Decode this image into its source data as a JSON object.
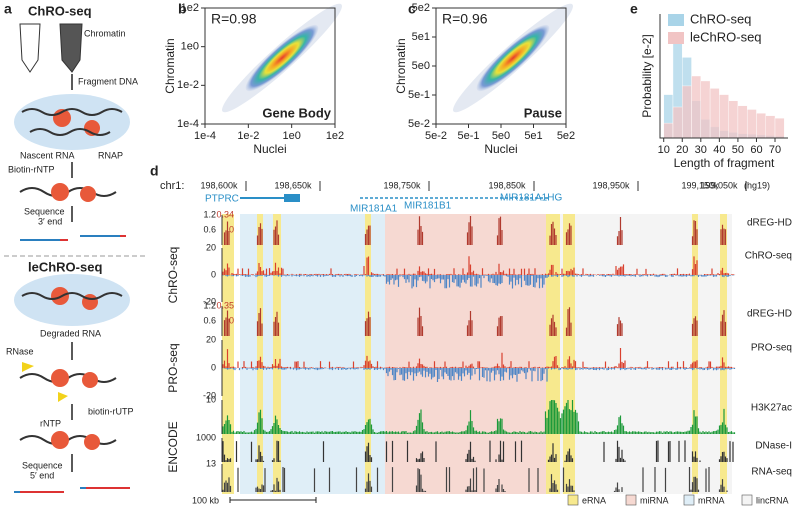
{
  "figure": {
    "panel_letters": [
      "a",
      "b",
      "c",
      "d",
      "e"
    ],
    "schematic": {
      "title_top": "ChRO-seq",
      "chromatin": "Chromatin",
      "fragment": "Fragment DNA",
      "nascent": "Nascent RNA",
      "rnap": "RNAP",
      "biotin_rntp": "Biotin-rNTP",
      "sequence_3": [
        "Sequence",
        "3′ end"
      ],
      "title_bottom": "leChRO-seq",
      "degraded": "Degraded RNA",
      "rnase": "RNase",
      "rntp": "rNTP",
      "biotin_rutp": "biotin-rUTP",
      "sequence_5": [
        "Sequence",
        "5′ end"
      ]
    },
    "browser": {
      "chrom": "chr1:",
      "coords": [
        "198,600k",
        "198,650k",
        "198,750k",
        "198,850k",
        "198,950k",
        "199,050k",
        "199,150k"
      ],
      "assembly": "(hg19)",
      "genes": [
        "PTPRC",
        "MIR181A1",
        "MIR181B1",
        "MIR181A1HG"
      ],
      "tracks": [
        {
          "name": "dREG-HD",
          "scale": [
            1.2,
            0.6
          ],
          "scale_red": [
            0.34,
            0
          ]
        },
        {
          "name": "ChRO-seq",
          "scale": [
            20,
            0,
            -20
          ]
        },
        {
          "name": "dREG-HD",
          "scale": [
            1.2,
            0.6
          ],
          "scale_red": [
            0.35,
            0
          ]
        },
        {
          "name": "PRO-seq",
          "scale": [
            20,
            0,
            -20
          ]
        },
        {
          "name": "H3K27ac",
          "scale": [
            10
          ]
        },
        {
          "name": "DNase-I",
          "scale": [
            1000
          ]
        },
        {
          "name": "RNA-seq",
          "scale": [
            13
          ]
        }
      ],
      "groups": [
        "ChRO-seq",
        "PRO-seq",
        "ENCODE"
      ],
      "scale_bar": "100 kb",
      "legend": [
        {
          "label": "eRNA",
          "color": "#f7e98e"
        },
        {
          "label": "miRNA",
          "color": "#f6d9d2"
        },
        {
          "label": "mRNA",
          "color": "#dfeef7"
        },
        {
          "label": "lincRNA",
          "color": "#f4f4f4"
        }
      ]
    }
  },
  "chart_data": [
    {
      "type": "density",
      "annotation": "R=0.98",
      "label": "Gene Body",
      "xlabel": "Nuclei",
      "ylabel": "Chromatin",
      "log_scale": true,
      "xlim": [
        0.0001,
        100
      ],
      "ylim": [
        0.0001,
        100
      ],
      "xticks": [
        {
          "value": 0.0001,
          "label": "1e-4"
        },
        {
          "value": 0.01,
          "label": "1e-2"
        },
        {
          "value": 1,
          "label": "1e0"
        },
        {
          "value": 100,
          "label": "1e2"
        }
      ],
      "yticks": [
        {
          "value": 0.0001,
          "label": "1e-4"
        },
        {
          "value": 0.01,
          "label": "1e-2"
        },
        {
          "value": 1,
          "label": "1e0"
        },
        {
          "value": 100,
          "label": "1e2"
        }
      ]
    },
    {
      "type": "density",
      "annotation": "R=0.96",
      "label": "Pause",
      "xlabel": "Nuclei",
      "ylabel": "Chromatin",
      "log_scale": true,
      "xlim": [
        0.05,
        500
      ],
      "ylim": [
        0.05,
        500
      ],
      "xticks": [
        {
          "value": 0.05,
          "label": "5e-2"
        },
        {
          "value": 0.5,
          "label": "5e-1"
        },
        {
          "value": 5,
          "label": "5e0"
        },
        {
          "value": 50,
          "label": "5e1"
        },
        {
          "value": 500,
          "label": "5e2"
        }
      ],
      "yticks": [
        {
          "value": 0.05,
          "label": "5e-2"
        },
        {
          "value": 0.5,
          "label": "5e-1"
        },
        {
          "value": 5,
          "label": "5e0"
        },
        {
          "value": 50,
          "label": "5e1"
        },
        {
          "value": 500,
          "label": "5e2"
        }
      ]
    },
    {
      "type": "histogram",
      "xlabel": "Length of fragment",
      "ylabel": "Probability [e-2]",
      "legend": "top",
      "bins": [
        10,
        15,
        20,
        25,
        30,
        35,
        40,
        45,
        50,
        55,
        60,
        65,
        70,
        75
      ],
      "xlim": [
        8,
        77
      ],
      "ylim": [
        0,
        10
      ],
      "xticks": [
        10,
        20,
        30,
        40,
        50,
        60,
        70
      ],
      "series": [
        {
          "name": "ChRO-seq",
          "color": "#a9d4e8",
          "values": [
            3.5,
            8,
            6.5,
            3,
            1.5,
            0.9,
            0.6,
            0.45,
            0.35,
            0.3,
            0.25,
            0.2,
            0.15
          ]
        },
        {
          "name": "leChRO-seq",
          "color": "#f1c4c4",
          "values": [
            1.2,
            2.5,
            4.2,
            5,
            4.6,
            4,
            3.5,
            3,
            2.6,
            2.3,
            2,
            1.8,
            1.6
          ]
        }
      ]
    }
  ]
}
